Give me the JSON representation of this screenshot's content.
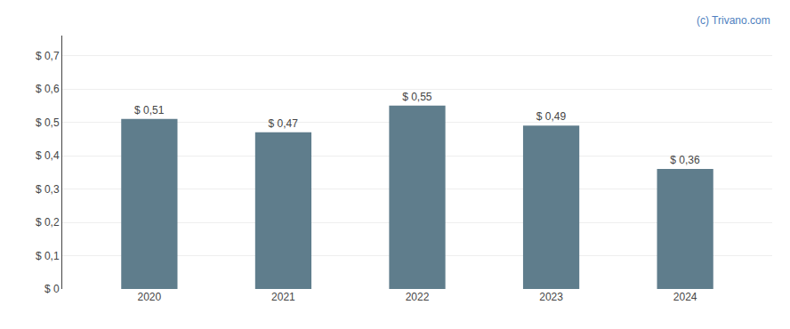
{
  "chart_data": {
    "type": "bar",
    "categories": [
      "2020",
      "2021",
      "2022",
      "2023",
      "2024"
    ],
    "values": [
      0.51,
      0.47,
      0.55,
      0.49,
      0.36
    ],
    "value_labels": [
      "$ 0,51",
      "$ 0,47",
      "$ 0,55",
      "$ 0,49",
      "$ 0,36"
    ],
    "data_labels": true,
    "color": "#5f7d8c",
    "ylim": [
      0,
      0.76
    ],
    "yticks": [
      {
        "value": 0.0,
        "label": "$ 0"
      },
      {
        "value": 0.1,
        "label": "$ 0,1"
      },
      {
        "value": 0.2,
        "label": "$ 0,2"
      },
      {
        "value": 0.3,
        "label": "$ 0,3"
      },
      {
        "value": 0.4,
        "label": "$ 0,4"
      },
      {
        "value": 0.5,
        "label": "$ 0,5"
      },
      {
        "value": 0.6,
        "label": "$ 0,6"
      },
      {
        "value": 0.7,
        "label": "$ 0,7"
      }
    ],
    "grid": true,
    "annotations": [
      {
        "text": "(c) Trivano.com",
        "color": "#4f7fc0"
      }
    ]
  }
}
